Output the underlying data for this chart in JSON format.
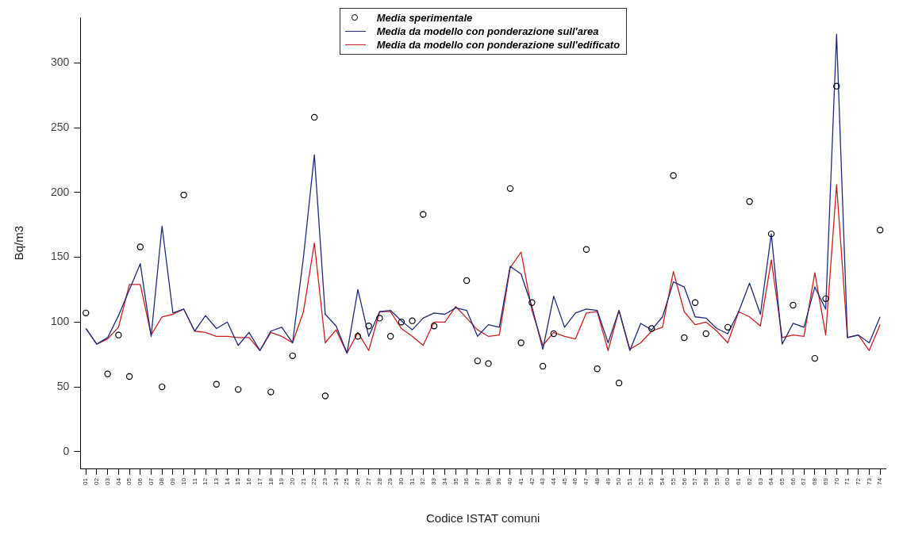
{
  "chart_data": {
    "type": "line",
    "xlabel": "Codice ISTAT comuni",
    "ylabel": "Bq/m3",
    "categories": [
      "01",
      "02",
      "03",
      "04",
      "05",
      "06",
      "07",
      "08",
      "09",
      "10",
      "11",
      "12",
      "13",
      "14",
      "15",
      "16",
      "17",
      "18",
      "19",
      "20",
      "21",
      "22",
      "23",
      "24",
      "25",
      "26",
      "27",
      "28",
      "29",
      "30",
      "31",
      "32",
      "33",
      "34",
      "35",
      "36",
      "37",
      "38",
      "39",
      "40",
      "41",
      "42",
      "43",
      "44",
      "45",
      "46",
      "47",
      "48",
      "49",
      "50",
      "51",
      "52",
      "53",
      "54",
      "55",
      "56",
      "57",
      "58",
      "59",
      "60",
      "61",
      "62",
      "63",
      "64",
      "65",
      "66",
      "67",
      "68",
      "69",
      "70",
      "71",
      "72",
      "73",
      "74"
    ],
    "series": [
      {
        "name": "Media sperimentale",
        "type": "scatter",
        "marker": "circle",
        "color": "#000000",
        "values": [
          107,
          null,
          60,
          90,
          58,
          158,
          null,
          50,
          null,
          198,
          null,
          null,
          52,
          null,
          48,
          null,
          null,
          46,
          null,
          74,
          null,
          258,
          43,
          null,
          null,
          89,
          97,
          103,
          89,
          100,
          101,
          183,
          97,
          null,
          null,
          132,
          70,
          68,
          null,
          203,
          84,
          115,
          66,
          91,
          null,
          null,
          156,
          64,
          null,
          53,
          null,
          null,
          95,
          null,
          213,
          88,
          115,
          91,
          null,
          96,
          null,
          193,
          null,
          168,
          null,
          113,
          null,
          72,
          118,
          282,
          null,
          null,
          null,
          171
        ]
      },
      {
        "name": "Media da modello con ponderazione sull'area",
        "type": "line",
        "marker": "none",
        "line_style": "solid",
        "color": "#1f2a80",
        "values": [
          95,
          83,
          88,
          105,
          125,
          145,
          89,
          174,
          107,
          110,
          93,
          105,
          95,
          100,
          82,
          92,
          78,
          93,
          96,
          84,
          150,
          229,
          106,
          97,
          76,
          125,
          89,
          108,
          109,
          101,
          94,
          103,
          107,
          106,
          111,
          109,
          89,
          98,
          96,
          143,
          137,
          112,
          79,
          120,
          96,
          107,
          110,
          109,
          84,
          109,
          78,
          99,
          94,
          104,
          131,
          127,
          104,
          103,
          95,
          91,
          108,
          130,
          106,
          168,
          83,
          99,
          96,
          127,
          110,
          322,
          88,
          90,
          84,
          104
        ]
      },
      {
        "name": "Media da modello con ponderazione sull'edificato",
        "type": "line",
        "marker": "none",
        "line_style": "solid",
        "color": "#cc2020",
        "values": [
          95,
          83,
          87,
          96,
          129,
          129,
          90,
          104,
          106,
          110,
          93,
          92,
          89,
          89,
          88,
          88,
          78,
          92,
          89,
          84,
          108,
          161,
          84,
          94,
          76,
          92,
          78,
          108,
          108,
          95,
          89,
          82,
          100,
          100,
          112,
          103,
          94,
          89,
          90,
          142,
          154,
          109,
          82,
          92,
          89,
          87,
          107,
          108,
          78,
          109,
          79,
          84,
          93,
          96,
          139,
          108,
          98,
          100,
          93,
          84,
          108,
          104,
          97,
          148,
          88,
          90,
          89,
          138,
          90,
          206,
          88,
          90,
          78,
          98
        ]
      }
    ],
    "ylim": [
      -13,
      335
    ],
    "yticks": [
      0,
      50,
      100,
      150,
      200,
      250,
      300
    ],
    "legend": "top"
  }
}
